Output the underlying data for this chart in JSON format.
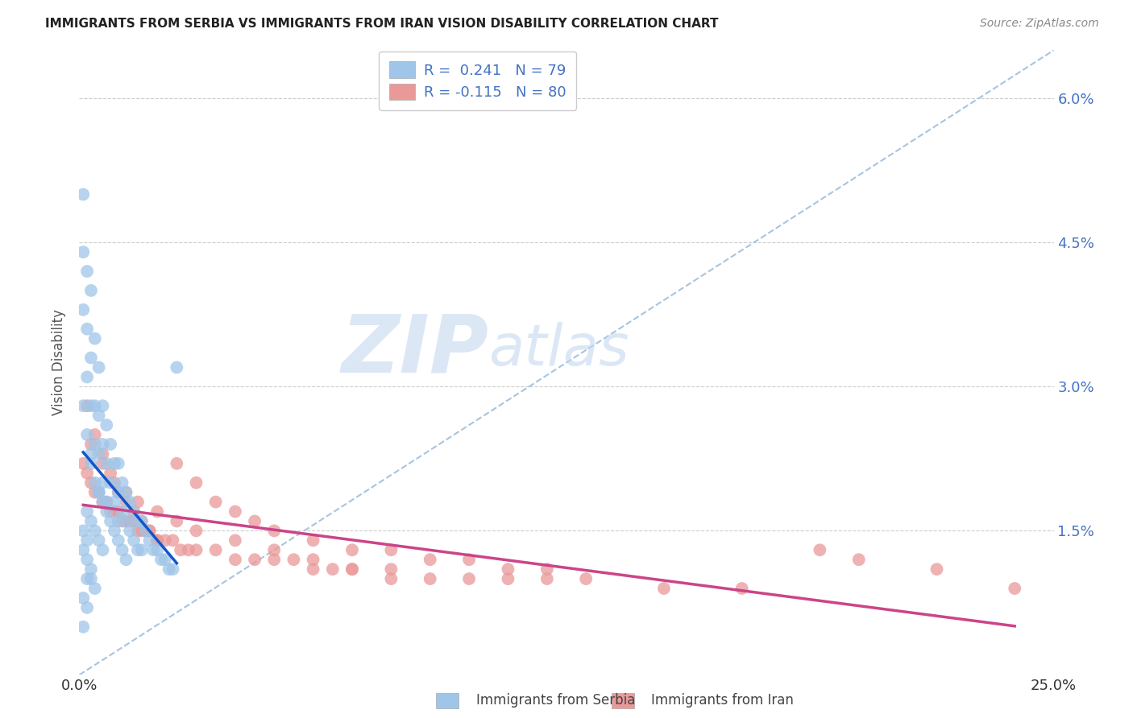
{
  "title": "IMMIGRANTS FROM SERBIA VS IMMIGRANTS FROM IRAN VISION DISABILITY CORRELATION CHART",
  "source": "Source: ZipAtlas.com",
  "ylabel": "Vision Disability",
  "xlim": [
    0.0,
    0.25
  ],
  "ylim": [
    0.0,
    0.065
  ],
  "serbia_R": 0.241,
  "serbia_N": 79,
  "iran_R": -0.115,
  "iran_N": 80,
  "color_serbia": "#9fc5e8",
  "color_iran": "#ea9999",
  "color_serbia_line": "#1155cc",
  "color_iran_line": "#cc4488",
  "color_diag_line": "#a8c4e0",
  "watermark_zip": "ZIP",
  "watermark_atlas": "atlas",
  "serbia_x": [
    0.001,
    0.001,
    0.001,
    0.002,
    0.002,
    0.002,
    0.003,
    0.003,
    0.003,
    0.003,
    0.004,
    0.004,
    0.004,
    0.005,
    0.005,
    0.005,
    0.005,
    0.006,
    0.006,
    0.006,
    0.007,
    0.007,
    0.007,
    0.008,
    0.008,
    0.009,
    0.009,
    0.01,
    0.01,
    0.01,
    0.011,
    0.011,
    0.012,
    0.012,
    0.013,
    0.013,
    0.014,
    0.014,
    0.015,
    0.015,
    0.016,
    0.016,
    0.017,
    0.018,
    0.019,
    0.02,
    0.021,
    0.022,
    0.023,
    0.024,
    0.001,
    0.002,
    0.003,
    0.004,
    0.005,
    0.006,
    0.007,
    0.008,
    0.009,
    0.01,
    0.011,
    0.012,
    0.002,
    0.003,
    0.004,
    0.005,
    0.006,
    0.001,
    0.002,
    0.001,
    0.002,
    0.003,
    0.002,
    0.003,
    0.004,
    0.001,
    0.002,
    0.001,
    0.025
  ],
  "serbia_y": [
    0.05,
    0.044,
    0.038,
    0.042,
    0.036,
    0.031,
    0.04,
    0.033,
    0.028,
    0.023,
    0.035,
    0.028,
    0.024,
    0.032,
    0.027,
    0.023,
    0.019,
    0.028,
    0.024,
    0.02,
    0.026,
    0.022,
    0.018,
    0.024,
    0.02,
    0.022,
    0.018,
    0.022,
    0.019,
    0.016,
    0.02,
    0.017,
    0.019,
    0.016,
    0.018,
    0.015,
    0.017,
    0.014,
    0.016,
    0.013,
    0.016,
    0.013,
    0.015,
    0.014,
    0.013,
    0.013,
    0.012,
    0.012,
    0.011,
    0.011,
    0.028,
    0.025,
    0.022,
    0.02,
    0.019,
    0.018,
    0.017,
    0.016,
    0.015,
    0.014,
    0.013,
    0.012,
    0.017,
    0.016,
    0.015,
    0.014,
    0.013,
    0.015,
    0.014,
    0.013,
    0.012,
    0.011,
    0.01,
    0.01,
    0.009,
    0.008,
    0.007,
    0.005,
    0.032
  ],
  "iran_x": [
    0.001,
    0.002,
    0.003,
    0.004,
    0.005,
    0.006,
    0.007,
    0.008,
    0.009,
    0.01,
    0.011,
    0.012,
    0.013,
    0.014,
    0.015,
    0.016,
    0.017,
    0.018,
    0.02,
    0.022,
    0.024,
    0.026,
    0.028,
    0.03,
    0.035,
    0.04,
    0.045,
    0.05,
    0.055,
    0.06,
    0.065,
    0.07,
    0.08,
    0.09,
    0.1,
    0.11,
    0.12,
    0.13,
    0.15,
    0.17,
    0.002,
    0.004,
    0.006,
    0.008,
    0.01,
    0.012,
    0.014,
    0.016,
    0.018,
    0.02,
    0.025,
    0.03,
    0.035,
    0.04,
    0.045,
    0.05,
    0.06,
    0.07,
    0.08,
    0.09,
    0.1,
    0.11,
    0.12,
    0.003,
    0.006,
    0.009,
    0.012,
    0.015,
    0.02,
    0.025,
    0.03,
    0.04,
    0.05,
    0.06,
    0.07,
    0.08,
    0.19,
    0.2,
    0.22,
    0.24
  ],
  "iran_y": [
    0.022,
    0.021,
    0.02,
    0.019,
    0.019,
    0.018,
    0.018,
    0.017,
    0.017,
    0.017,
    0.016,
    0.016,
    0.016,
    0.016,
    0.015,
    0.015,
    0.015,
    0.015,
    0.014,
    0.014,
    0.014,
    0.013,
    0.013,
    0.013,
    0.013,
    0.012,
    0.012,
    0.012,
    0.012,
    0.011,
    0.011,
    0.011,
    0.011,
    0.01,
    0.01,
    0.01,
    0.01,
    0.01,
    0.009,
    0.009,
    0.028,
    0.025,
    0.023,
    0.021,
    0.019,
    0.018,
    0.017,
    0.016,
    0.015,
    0.014,
    0.022,
    0.02,
    0.018,
    0.017,
    0.016,
    0.015,
    0.014,
    0.013,
    0.013,
    0.012,
    0.012,
    0.011,
    0.011,
    0.024,
    0.022,
    0.02,
    0.019,
    0.018,
    0.017,
    0.016,
    0.015,
    0.014,
    0.013,
    0.012,
    0.011,
    0.01,
    0.013,
    0.012,
    0.011,
    0.009
  ]
}
